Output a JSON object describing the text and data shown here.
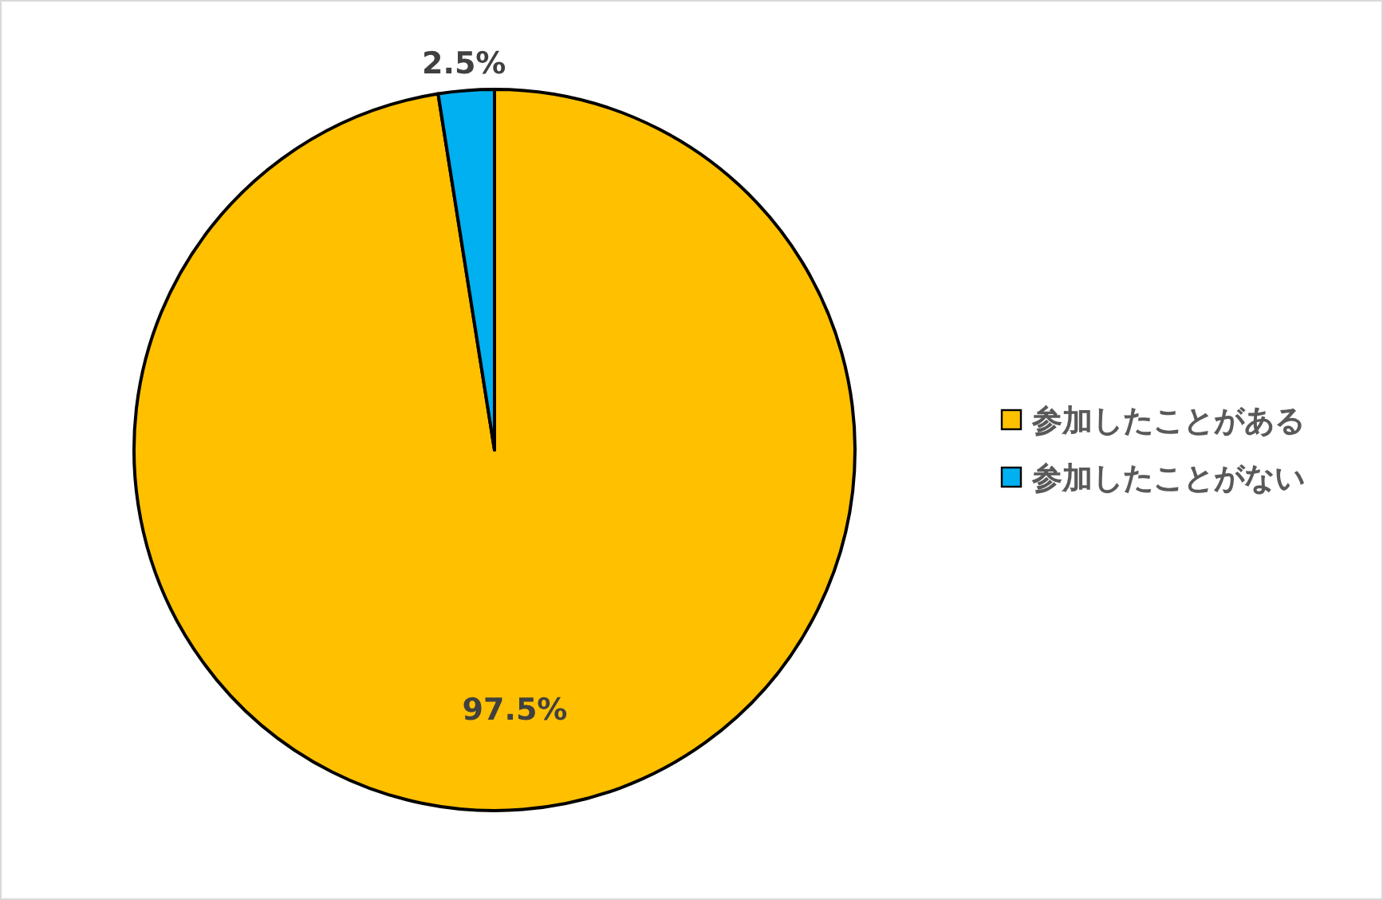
{
  "chart_data": {
    "type": "pie",
    "categories": [
      "参加したことがある",
      "参加したことがない"
    ],
    "values": [
      97.5,
      2.5
    ],
    "colors": [
      "#ffc000",
      "#00b0f0"
    ],
    "value_labels": [
      "97.5%",
      "2.5%"
    ],
    "legend": "right"
  }
}
